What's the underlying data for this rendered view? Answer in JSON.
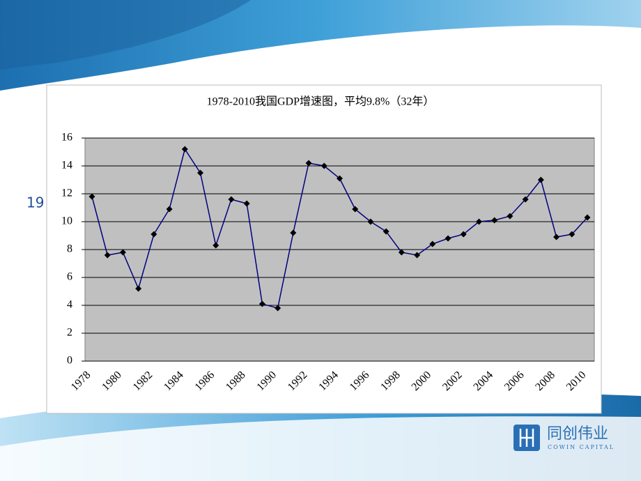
{
  "background_text": "19",
  "logo": {
    "name": "同创伟业",
    "subtitle": "COWIN CAPITAL"
  },
  "chart_data": {
    "type": "line",
    "title": "1978-2010我国GDP增速图，平均9.8%（32年）",
    "categories": [
      "1978",
      null,
      "1980",
      null,
      "1982",
      null,
      "1984",
      null,
      "1986",
      null,
      "1988",
      null,
      "1990",
      null,
      "1992",
      null,
      "1994",
      null,
      "1996",
      null,
      "1998",
      null,
      "2000",
      null,
      "2002",
      null,
      "2004",
      null,
      "2006",
      null,
      "2008",
      null,
      "2010"
    ],
    "series": [
      {
        "name": "GDP增速",
        "color": "#000080",
        "marker_color": "#000000",
        "values": [
          11.8,
          7.6,
          7.8,
          5.2,
          9.1,
          10.9,
          15.2,
          13.5,
          8.3,
          11.6,
          11.3,
          4.1,
          3.8,
          9.2,
          14.2,
          14.0,
          13.1,
          10.9,
          10.0,
          9.3,
          7.8,
          7.6,
          8.4,
          8.8,
          9.1,
          10.0,
          10.1,
          10.4,
          11.6,
          13.0,
          8.9,
          9.1,
          10.3
        ]
      }
    ],
    "ylim": [
      0,
      16
    ],
    "yticks": [
      0,
      2,
      4,
      6,
      8,
      10,
      12,
      14,
      16
    ],
    "grid": true,
    "plot_background": "#c0c0c0"
  }
}
